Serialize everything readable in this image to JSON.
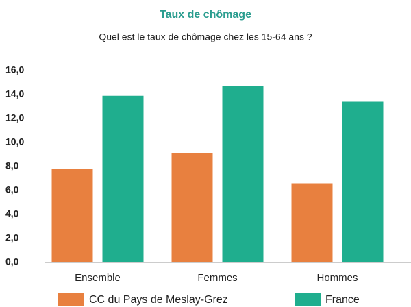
{
  "chart_data": {
    "type": "bar",
    "title": "Taux de chômage",
    "subtitle": "Quel est le taux de chômage chez les 15-64 ans ?",
    "categories": [
      "Ensemble",
      "Femmes",
      "Hommes"
    ],
    "series": [
      {
        "name": "CC du Pays de Meslay-Grez",
        "color": "#e8803f",
        "values": [
          7.8,
          9.1,
          6.6
        ]
      },
      {
        "name": "France",
        "color": "#1fae8e",
        "values": [
          13.9,
          14.7,
          13.4
        ]
      }
    ],
    "ylim": [
      0,
      16
    ],
    "yticks": [
      {
        "value": 0,
        "label": "0,0"
      },
      {
        "value": 2,
        "label": "2,0"
      },
      {
        "value": 4,
        "label": "4,0"
      },
      {
        "value": 6,
        "label": "6,0"
      },
      {
        "value": 8,
        "label": "8,0"
      },
      {
        "value": 10,
        "label": "10,0"
      },
      {
        "value": 12,
        "label": "12,0"
      },
      {
        "value": 14,
        "label": "14,0"
      },
      {
        "value": 16,
        "label": "16,0"
      }
    ],
    "grid": false,
    "title_color": "#2a9d8f"
  }
}
